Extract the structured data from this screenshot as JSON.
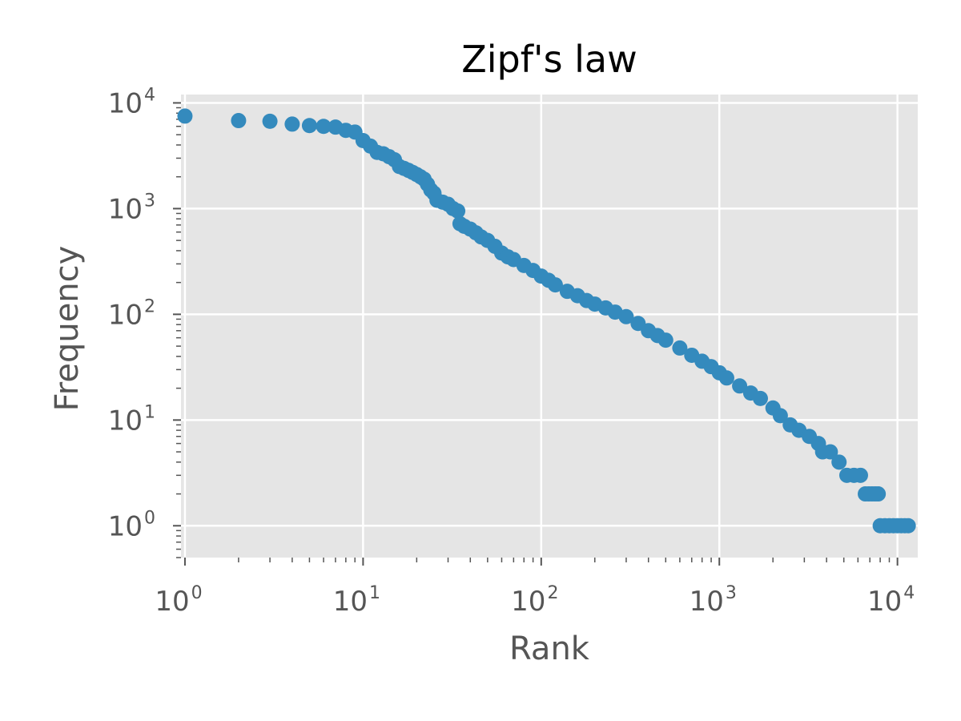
{
  "chart_data": {
    "type": "scatter",
    "title": "Zipf's law",
    "xlabel": "Rank",
    "ylabel": "Frequency",
    "xscale": "log",
    "yscale": "log",
    "xlim": [
      0.95,
      13000
    ],
    "ylim": [
      0.5,
      12000
    ],
    "grid": true,
    "point_color": "#348ABD",
    "background_color": "#E5E5E5",
    "x_ticks": [
      {
        "base": "10",
        "exp": "0",
        "value": 1
      },
      {
        "base": "10",
        "exp": "1",
        "value": 10
      },
      {
        "base": "10",
        "exp": "2",
        "value": 100
      },
      {
        "base": "10",
        "exp": "3",
        "value": 1000
      },
      {
        "base": "10",
        "exp": "4",
        "value": 10000
      }
    ],
    "y_ticks": [
      {
        "base": "10",
        "exp": "0",
        "value": 1
      },
      {
        "base": "10",
        "exp": "1",
        "value": 10
      },
      {
        "base": "10",
        "exp": "2",
        "value": 100
      },
      {
        "base": "10",
        "exp": "3",
        "value": 1000
      },
      {
        "base": "10",
        "exp": "4",
        "value": 10000
      }
    ],
    "points": [
      [
        1,
        7500
      ],
      [
        2,
        6800
      ],
      [
        3,
        6700
      ],
      [
        4,
        6300
      ],
      [
        5,
        6100
      ],
      [
        6,
        6000
      ],
      [
        7,
        5900
      ],
      [
        8,
        5500
      ],
      [
        9,
        5300
      ],
      [
        10,
        4400
      ],
      [
        11,
        3900
      ],
      [
        12,
        3400
      ],
      [
        13,
        3300
      ],
      [
        14,
        3100
      ],
      [
        15,
        2900
      ],
      [
        16,
        2500
      ],
      [
        17,
        2400
      ],
      [
        18,
        2300
      ],
      [
        19,
        2200
      ],
      [
        20,
        2100
      ],
      [
        21,
        2000
      ],
      [
        22,
        1900
      ],
      [
        23,
        1700
      ],
      [
        24,
        1500
      ],
      [
        25,
        1400
      ],
      [
        26,
        1200
      ],
      [
        28,
        1150
      ],
      [
        30,
        1100
      ],
      [
        32,
        1000
      ],
      [
        34,
        950
      ],
      [
        35,
        720
      ],
      [
        37,
        680
      ],
      [
        40,
        640
      ],
      [
        43,
        590
      ],
      [
        46,
        540
      ],
      [
        50,
        500
      ],
      [
        55,
        440
      ],
      [
        60,
        380
      ],
      [
        65,
        350
      ],
      [
        70,
        330
      ],
      [
        80,
        290
      ],
      [
        90,
        260
      ],
      [
        100,
        230
      ],
      [
        110,
        210
      ],
      [
        120,
        190
      ],
      [
        140,
        165
      ],
      [
        160,
        150
      ],
      [
        180,
        135
      ],
      [
        200,
        125
      ],
      [
        230,
        115
      ],
      [
        260,
        105
      ],
      [
        300,
        95
      ],
      [
        350,
        82
      ],
      [
        400,
        70
      ],
      [
        450,
        63
      ],
      [
        500,
        57
      ],
      [
        600,
        48
      ],
      [
        700,
        41
      ],
      [
        800,
        36
      ],
      [
        900,
        32
      ],
      [
        1000,
        28
      ],
      [
        1100,
        25
      ],
      [
        1300,
        21
      ],
      [
        1500,
        18
      ],
      [
        1700,
        16
      ],
      [
        2000,
        13
      ],
      [
        2200,
        11
      ],
      [
        2500,
        9
      ],
      [
        2800,
        8
      ],
      [
        3200,
        7
      ],
      [
        3600,
        6
      ],
      [
        3800,
        5
      ],
      [
        4200,
        5
      ],
      [
        4700,
        4
      ],
      [
        5200,
        3
      ],
      [
        5700,
        3
      ],
      [
        6200,
        3
      ],
      [
        6600,
        2
      ],
      [
        6900,
        2
      ],
      [
        7200,
        2
      ],
      [
        7500,
        2
      ],
      [
        7800,
        2
      ],
      [
        8000,
        1
      ],
      [
        8500,
        1
      ],
      [
        9000,
        1
      ],
      [
        9500,
        1
      ],
      [
        10000,
        1
      ],
      [
        10500,
        1
      ],
      [
        11000,
        1
      ],
      [
        11500,
        1
      ]
    ]
  }
}
